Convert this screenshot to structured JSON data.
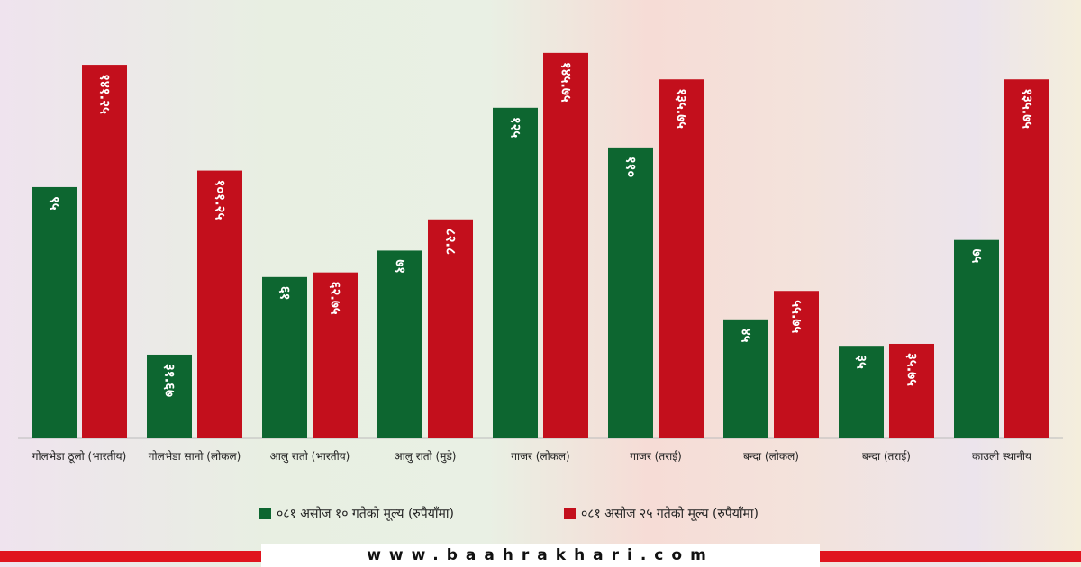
{
  "chart_data": {
    "type": "bar",
    "categories": [
      "गोलभेडा ठूलो (भारतीय)",
      "गोलभेडा सानो (लोकल)",
      "आलु रातो (भारतीय)",
      "आलु रातो (मुडे)",
      "गाजर (लोकल)",
      "गाजर (तराई)",
      "बन्दा (लोकल)",
      "बन्दा (तराई)",
      "काउली स्थानीय"
    ],
    "series": [
      {
        "name": "०८१ असोज १० गतेको मूल्य (रुपैयाँमा)",
        "color": "#0d6630",
        "values": [
          95,
          31.67,
          61,
          71,
          125,
          110,
          45,
          35,
          75
        ],
        "value_labels": [
          "९५",
          "३१.६७",
          "६१",
          "७१",
          "१२५",
          "११०",
          "४५",
          "३५",
          "७५"
        ]
      },
      {
        "name": "०८१ असोज २५ गतेको मूल्य (रुपैयाँमा)",
        "color": "#c30f1c",
        "values": [
          141.25,
          101.25,
          62.75,
          82.8,
          145.75,
          135.75,
          55.75,
          35.75,
          135.75
        ],
        "value_labels": [
          "१४१.२५",
          "१०१.२५",
          "६२.७५",
          "८२.८",
          "१४५.७५",
          "१३५.७५",
          "५५.७५",
          "३५.७५",
          "१३५.७५"
        ]
      }
    ],
    "ylim": [
      0,
      160
    ],
    "footer": "www.baahrakhari.com"
  }
}
